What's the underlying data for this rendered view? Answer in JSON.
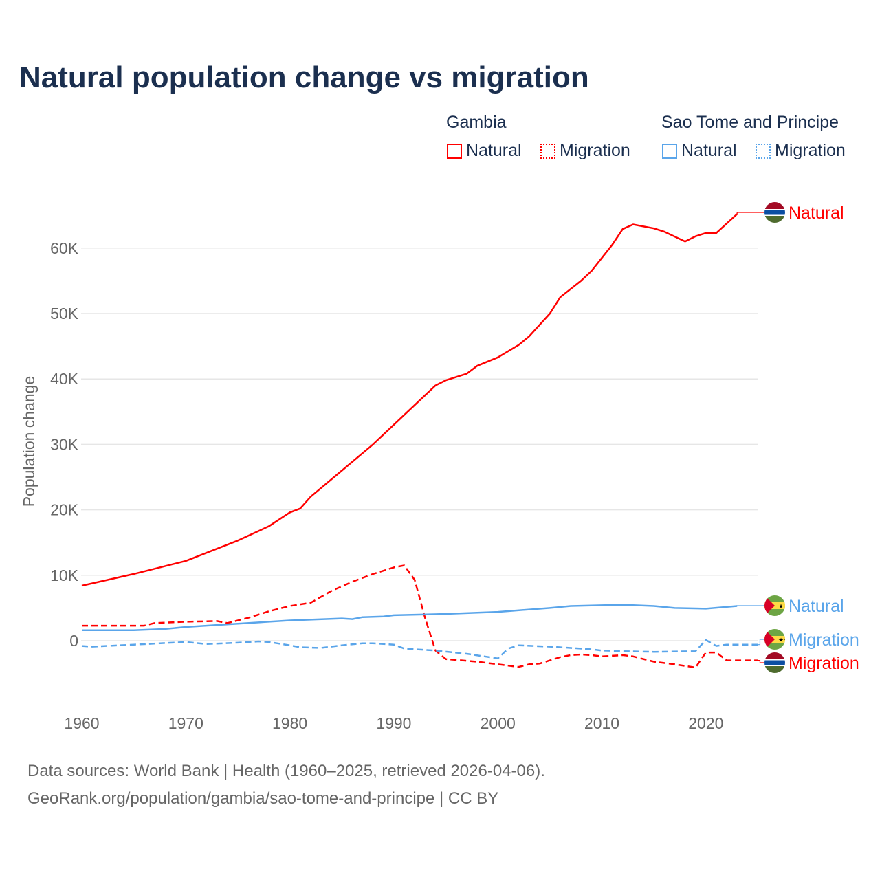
{
  "title": "Natural population change vs migration",
  "legend": {
    "groups": [
      {
        "name": "Gambia",
        "items": [
          {
            "label": "Natural",
            "style": "solid",
            "color": "#ff0000"
          },
          {
            "label": "Migration",
            "style": "dotted",
            "color": "#ff0000"
          }
        ]
      },
      {
        "name": "Sao Tome and Principe",
        "items": [
          {
            "label": "Natural",
            "style": "solid",
            "color": "#5aa5ea"
          },
          {
            "label": "Migration",
            "style": "dotted",
            "color": "#5aa5ea"
          }
        ]
      }
    ]
  },
  "footer": {
    "line1": "Data sources: World Bank | Health (1960–2025, retrieved 2026-04-06).",
    "line2": "GeoRank.org/population/gambia/sao-tome-and-principe | CC BY"
  },
  "chart_data": {
    "type": "line",
    "title": "Natural population change vs migration",
    "xlabel": "",
    "ylabel": "Population change",
    "xlim": [
      1960,
      2025
    ],
    "ylim": [
      -10000,
      70000
    ],
    "xticks": [
      1960,
      1970,
      1980,
      1990,
      2000,
      2010,
      2020
    ],
    "xtick_labels": [
      "1960",
      "1970",
      "1980",
      "1990",
      "2000",
      "2010",
      "2020"
    ],
    "yticks": [
      0,
      10000,
      20000,
      30000,
      40000,
      50000,
      60000
    ],
    "ytick_labels": [
      "0",
      "10K",
      "20K",
      "30K",
      "40K",
      "50K",
      "60K"
    ],
    "grid": true,
    "series": [
      {
        "name": "Gambia Natural",
        "end_label": "Natural",
        "color": "#ff0000",
        "dash": false,
        "flag": "gambia",
        "points": [
          [
            1960,
            8400
          ],
          [
            1965,
            10200
          ],
          [
            1970,
            12200
          ],
          [
            1975,
            15300
          ],
          [
            1978,
            17500
          ],
          [
            1980,
            19600
          ],
          [
            1981,
            20200
          ],
          [
            1982,
            22000
          ],
          [
            1985,
            26000
          ],
          [
            1988,
            30000
          ],
          [
            1990,
            33000
          ],
          [
            1994,
            39000
          ],
          [
            1995,
            39800
          ],
          [
            1997,
            40800
          ],
          [
            1998,
            42000
          ],
          [
            2000,
            43300
          ],
          [
            2002,
            45200
          ],
          [
            2003,
            46500
          ],
          [
            2005,
            50000
          ],
          [
            2006,
            52500
          ],
          [
            2008,
            55000
          ],
          [
            2009,
            56500
          ],
          [
            2011,
            60500
          ],
          [
            2012,
            62900
          ],
          [
            2013,
            63600
          ],
          [
            2015,
            63000
          ],
          [
            2016,
            62500
          ],
          [
            2018,
            61000
          ],
          [
            2019,
            61800
          ],
          [
            2020,
            62300
          ],
          [
            2021,
            62300
          ],
          [
            2023,
            65200
          ]
        ]
      },
      {
        "name": "Gambia Migration",
        "end_label": "Migration",
        "color": "#ff0000",
        "dash": true,
        "flag": "gambia",
        "points": [
          [
            1960,
            2300
          ],
          [
            1966,
            2300
          ],
          [
            1967,
            2700
          ],
          [
            1970,
            2900
          ],
          [
            1973,
            3000
          ],
          [
            1974,
            2700
          ],
          [
            1976,
            3500
          ],
          [
            1978,
            4500
          ],
          [
            1980,
            5300
          ],
          [
            1982,
            5800
          ],
          [
            1984,
            7600
          ],
          [
            1986,
            9000
          ],
          [
            1988,
            10200
          ],
          [
            1990,
            11200
          ],
          [
            1991,
            11500
          ],
          [
            1992,
            9300
          ],
          [
            1993,
            3500
          ],
          [
            1994,
            -1500
          ],
          [
            1995,
            -2800
          ],
          [
            1998,
            -3200
          ],
          [
            2000,
            -3600
          ],
          [
            2002,
            -4000
          ],
          [
            2003,
            -3600
          ],
          [
            2004,
            -3500
          ],
          [
            2005,
            -3000
          ],
          [
            2006,
            -2500
          ],
          [
            2007,
            -2200
          ],
          [
            2008,
            -2100
          ],
          [
            2009,
            -2200
          ],
          [
            2010,
            -2400
          ],
          [
            2012,
            -2200
          ],
          [
            2013,
            -2400
          ],
          [
            2015,
            -3200
          ],
          [
            2017,
            -3600
          ],
          [
            2019,
            -4100
          ],
          [
            2020,
            -1800
          ],
          [
            2021,
            -1800
          ],
          [
            2022,
            -3000
          ],
          [
            2025,
            -3000
          ]
        ]
      },
      {
        "name": "Sao Tome and Principe Natural",
        "end_label": "Natural",
        "color": "#5aa5ea",
        "dash": false,
        "flag": "stp",
        "points": [
          [
            1960,
            1600
          ],
          [
            1965,
            1600
          ],
          [
            1968,
            1800
          ],
          [
            1970,
            2100
          ],
          [
            1975,
            2600
          ],
          [
            1980,
            3100
          ],
          [
            1985,
            3400
          ],
          [
            1986,
            3300
          ],
          [
            1987,
            3600
          ],
          [
            1989,
            3700
          ],
          [
            1990,
            3900
          ],
          [
            1995,
            4100
          ],
          [
            2000,
            4400
          ],
          [
            2005,
            5000
          ],
          [
            2007,
            5300
          ],
          [
            2012,
            5500
          ],
          [
            2015,
            5300
          ],
          [
            2017,
            5000
          ],
          [
            2020,
            4900
          ],
          [
            2023,
            5300
          ]
        ]
      },
      {
        "name": "Sao Tome and Principe Migration",
        "end_label": "Migration",
        "color": "#5aa5ea",
        "dash": true,
        "flag": "stp",
        "points": [
          [
            1960,
            -800
          ],
          [
            1961,
            -900
          ],
          [
            1965,
            -600
          ],
          [
            1970,
            -200
          ],
          [
            1972,
            -500
          ],
          [
            1975,
            -300
          ],
          [
            1977,
            -100
          ],
          [
            1978,
            -200
          ],
          [
            1980,
            -700
          ],
          [
            1981,
            -1000
          ],
          [
            1983,
            -1100
          ],
          [
            1985,
            -700
          ],
          [
            1987,
            -400
          ],
          [
            1988,
            -400
          ],
          [
            1990,
            -600
          ],
          [
            1991,
            -1200
          ],
          [
            1994,
            -1500
          ],
          [
            1997,
            -2000
          ],
          [
            2000,
            -2700
          ],
          [
            2001,
            -1200
          ],
          [
            2002,
            -700
          ],
          [
            2005,
            -900
          ],
          [
            2009,
            -1300
          ],
          [
            2010,
            -1500
          ],
          [
            2012,
            -1600
          ],
          [
            2015,
            -1700
          ],
          [
            2019,
            -1600
          ],
          [
            2020,
            100
          ],
          [
            2021,
            -800
          ],
          [
            2022,
            -600
          ],
          [
            2025,
            -600
          ]
        ]
      }
    ]
  }
}
